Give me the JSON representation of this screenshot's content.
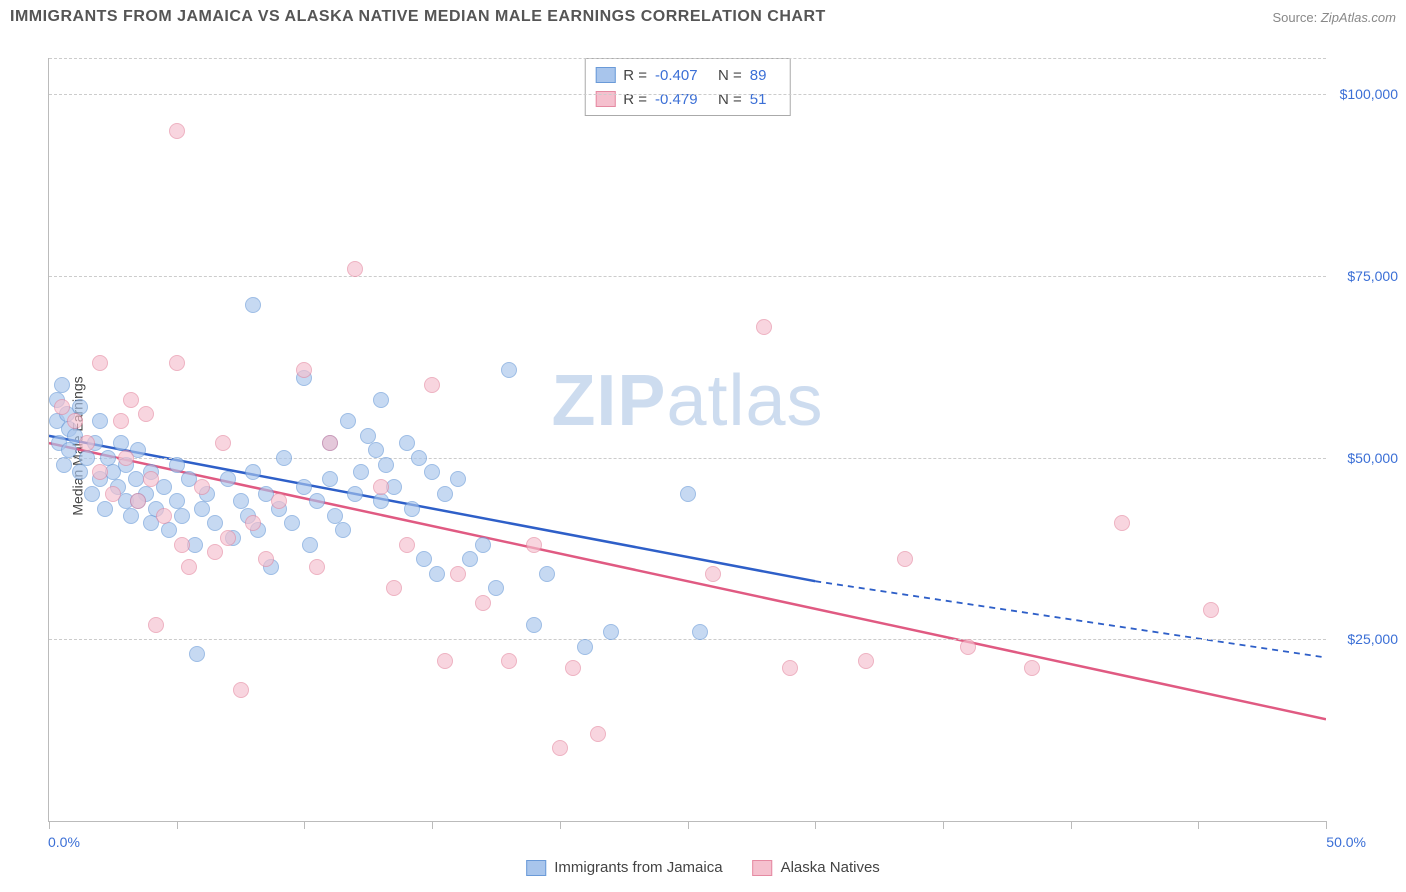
{
  "title": "IMMIGRANTS FROM JAMAICA VS ALASKA NATIVE MEDIAN MALE EARNINGS CORRELATION CHART",
  "source_prefix": "Source: ",
  "source_name": "ZipAtlas.com",
  "y_axis_label": "Median Male Earnings",
  "watermark_a": "ZIP",
  "watermark_b": "atlas",
  "chart": {
    "type": "scatter",
    "xlim": [
      0,
      50
    ],
    "ylim": [
      0,
      105000
    ],
    "x_tick_positions": [
      0,
      5,
      10,
      15,
      20,
      25,
      30,
      35,
      40,
      45,
      50
    ],
    "x_start_label": "0.0%",
    "x_end_label": "50.0%",
    "y_ticks": [
      {
        "value": 25000,
        "label": "$25,000"
      },
      {
        "value": 50000,
        "label": "$50,000"
      },
      {
        "value": 75000,
        "label": "$75,000"
      },
      {
        "value": 100000,
        "label": "$100,000"
      }
    ],
    "grid_extra": [
      0
    ],
    "grid_color": "#cccccc",
    "background_color": "#ffffff",
    "series": [
      {
        "key": "jamaica",
        "name": "Immigrants from Jamaica",
        "fill": "#a8c5ec",
        "stroke": "#6a9ad8",
        "line_color": "#2e5fc8",
        "r_value": "-0.407",
        "n_value": "89",
        "trend": {
          "x1": 0,
          "y1": 53000,
          "x2": 30,
          "y2": 33000,
          "dash_to_x": 50,
          "dash_to_y": 22500
        },
        "points": [
          [
            0.3,
            58000
          ],
          [
            0.3,
            55000
          ],
          [
            0.4,
            52000
          ],
          [
            0.5,
            60000
          ],
          [
            0.6,
            49000
          ],
          [
            0.7,
            56000
          ],
          [
            0.8,
            51000
          ],
          [
            0.8,
            54000
          ],
          [
            1.0,
            53000
          ],
          [
            1.2,
            48000
          ],
          [
            1.2,
            57000
          ],
          [
            1.5,
            50000
          ],
          [
            1.7,
            45000
          ],
          [
            1.8,
            52000
          ],
          [
            2.0,
            47000
          ],
          [
            2.0,
            55000
          ],
          [
            2.2,
            43000
          ],
          [
            2.3,
            50000
          ],
          [
            2.5,
            48000
          ],
          [
            2.7,
            46000
          ],
          [
            2.8,
            52000
          ],
          [
            3.0,
            44000
          ],
          [
            3.0,
            49000
          ],
          [
            3.2,
            42000
          ],
          [
            3.4,
            47000
          ],
          [
            3.5,
            51000
          ],
          [
            3.8,
            45000
          ],
          [
            4.0,
            41000
          ],
          [
            4.0,
            48000
          ],
          [
            4.2,
            43000
          ],
          [
            4.5,
            46000
          ],
          [
            4.7,
            40000
          ],
          [
            5.0,
            44000
          ],
          [
            5.0,
            49000
          ],
          [
            5.2,
            42000
          ],
          [
            5.5,
            47000
          ],
          [
            5.7,
            38000
          ],
          [
            6.0,
            43000
          ],
          [
            6.2,
            45000
          ],
          [
            6.5,
            41000
          ],
          [
            7.0,
            47000
          ],
          [
            7.2,
            39000
          ],
          [
            7.5,
            44000
          ],
          [
            7.8,
            42000
          ],
          [
            8.0,
            48000
          ],
          [
            8.0,
            71000
          ],
          [
            8.2,
            40000
          ],
          [
            8.5,
            45000
          ],
          [
            8.7,
            35000
          ],
          [
            9.0,
            43000
          ],
          [
            9.2,
            50000
          ],
          [
            9.5,
            41000
          ],
          [
            10.0,
            61000
          ],
          [
            10.0,
            46000
          ],
          [
            10.2,
            38000
          ],
          [
            10.5,
            44000
          ],
          [
            11.0,
            52000
          ],
          [
            11.0,
            47000
          ],
          [
            11.2,
            42000
          ],
          [
            11.5,
            40000
          ],
          [
            11.7,
            55000
          ],
          [
            12.0,
            45000
          ],
          [
            12.2,
            48000
          ],
          [
            12.5,
            53000
          ],
          [
            12.8,
            51000
          ],
          [
            13.0,
            44000
          ],
          [
            13.0,
            58000
          ],
          [
            13.2,
            49000
          ],
          [
            13.5,
            46000
          ],
          [
            14.0,
            52000
          ],
          [
            14.2,
            43000
          ],
          [
            14.5,
            50000
          ],
          [
            14.7,
            36000
          ],
          [
            15.0,
            48000
          ],
          [
            15.2,
            34000
          ],
          [
            15.5,
            45000
          ],
          [
            16.0,
            47000
          ],
          [
            16.5,
            36000
          ],
          [
            17.0,
            38000
          ],
          [
            17.5,
            32000
          ],
          [
            18.0,
            62000
          ],
          [
            19.0,
            27000
          ],
          [
            19.5,
            34000
          ],
          [
            21.0,
            24000
          ],
          [
            22.0,
            26000
          ],
          [
            25.0,
            45000
          ],
          [
            25.5,
            26000
          ],
          [
            5.8,
            23000
          ],
          [
            3.5,
            44000
          ]
        ]
      },
      {
        "key": "alaska",
        "name": "Alaska Natives",
        "fill": "#f5c0ce",
        "stroke": "#e58aa2",
        "line_color": "#e05a82",
        "r_value": "-0.479",
        "n_value": "51",
        "trend": {
          "x1": 0,
          "y1": 52000,
          "x2": 50,
          "y2": 14000
        },
        "points": [
          [
            0.5,
            57000
          ],
          [
            1.0,
            55000
          ],
          [
            1.5,
            52000
          ],
          [
            2.0,
            63000
          ],
          [
            2.0,
            48000
          ],
          [
            2.5,
            45000
          ],
          [
            2.8,
            55000
          ],
          [
            3.0,
            50000
          ],
          [
            3.2,
            58000
          ],
          [
            3.5,
            44000
          ],
          [
            4.0,
            47000
          ],
          [
            4.2,
            27000
          ],
          [
            4.5,
            42000
          ],
          [
            5.0,
            95000
          ],
          [
            5.0,
            63000
          ],
          [
            5.2,
            38000
          ],
          [
            5.5,
            35000
          ],
          [
            6.0,
            46000
          ],
          [
            6.5,
            37000
          ],
          [
            7.0,
            39000
          ],
          [
            7.5,
            18000
          ],
          [
            8.0,
            41000
          ],
          [
            8.5,
            36000
          ],
          [
            9.0,
            44000
          ],
          [
            10.0,
            62000
          ],
          [
            10.5,
            35000
          ],
          [
            11.0,
            52000
          ],
          [
            12.0,
            76000
          ],
          [
            13.0,
            46000
          ],
          [
            13.5,
            32000
          ],
          [
            14.0,
            38000
          ],
          [
            15.0,
            60000
          ],
          [
            15.5,
            22000
          ],
          [
            16.0,
            34000
          ],
          [
            17.0,
            30000
          ],
          [
            18.0,
            22000
          ],
          [
            19.0,
            38000
          ],
          [
            20.0,
            10000
          ],
          [
            20.5,
            21000
          ],
          [
            21.5,
            12000
          ],
          [
            26.0,
            34000
          ],
          [
            28.0,
            68000
          ],
          [
            29.0,
            21000
          ],
          [
            32.0,
            22000
          ],
          [
            33.5,
            36000
          ],
          [
            36.0,
            24000
          ],
          [
            38.5,
            21000
          ],
          [
            42.0,
            41000
          ],
          [
            45.5,
            29000
          ],
          [
            3.8,
            56000
          ],
          [
            6.8,
            52000
          ]
        ]
      }
    ],
    "legend_box_labels": {
      "r": "R =",
      "n": "N ="
    }
  }
}
